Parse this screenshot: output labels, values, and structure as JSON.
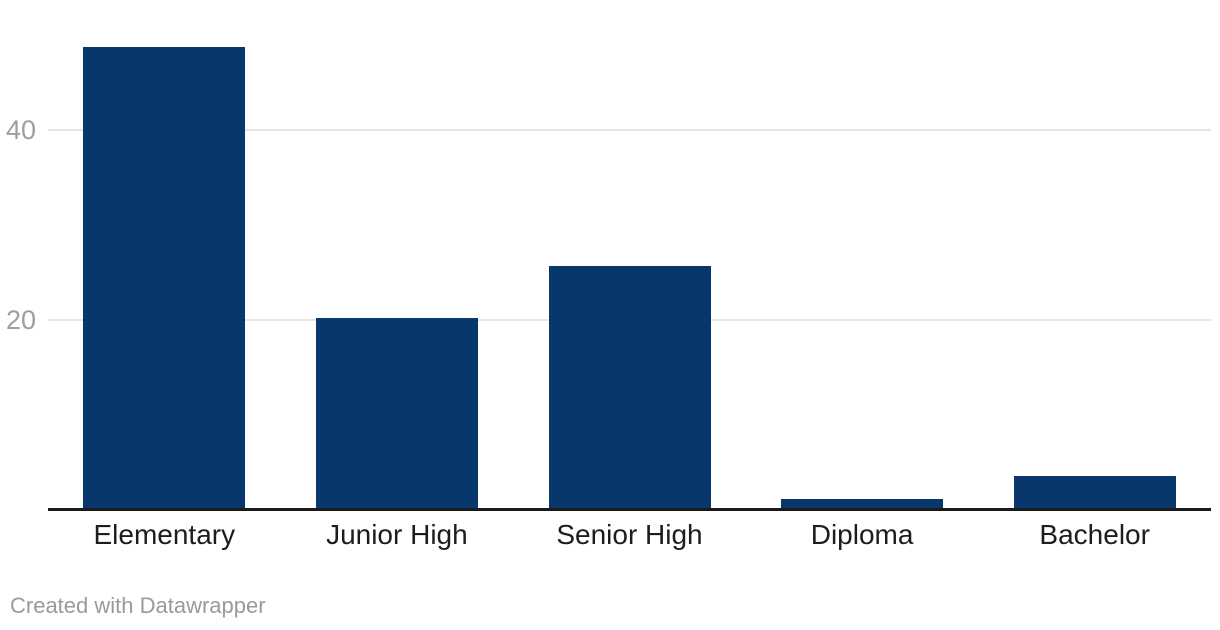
{
  "chart": {
    "footer": "Created with Datawrapper",
    "colors": {
      "bar": "#08386b",
      "axis": "#1a1a1a",
      "grid": "#e6e6e6",
      "tick_label": "#9e9e9e",
      "category_label": "#1d1d1d",
      "footer_text": "#9a9a9a",
      "background": "#ffffff"
    }
  },
  "chart_data": {
    "type": "bar",
    "categories": [
      "Elementary",
      "Junior High",
      "Senior High",
      "Diploma",
      "Bachelor"
    ],
    "values": [
      48.7,
      20.2,
      25.6,
      1.2,
      3.6
    ],
    "title": "",
    "xlabel": "",
    "ylabel": "",
    "ylim": [
      0,
      50
    ],
    "yticks": [
      20,
      40
    ],
    "grid": "horizontal-only",
    "legend": "none",
    "bar_orientation": "vertical"
  }
}
